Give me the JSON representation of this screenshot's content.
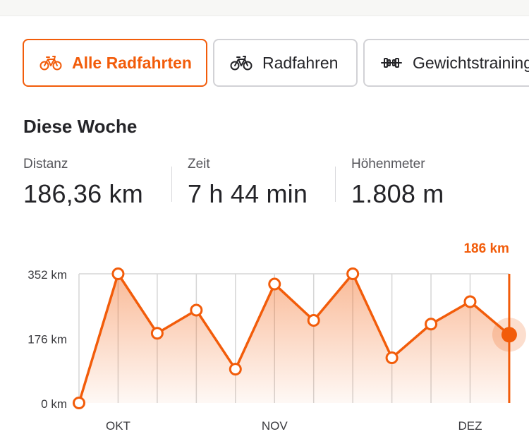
{
  "tabs": [
    {
      "label": "Alle Radfahrten",
      "icon": "bike-icon",
      "active": true
    },
    {
      "label": "Radfahren",
      "icon": "bike-icon",
      "active": false
    },
    {
      "label": "Gewichtstraining",
      "icon": "dumbbell-icon",
      "active": false
    }
  ],
  "section_title": "Diese Woche",
  "stats": [
    {
      "label": "Distanz",
      "value": "186,36 km"
    },
    {
      "label": "Zeit",
      "value": "7 h 44 min"
    },
    {
      "label": "Höhenmeter",
      "value": "1.808 m"
    }
  ],
  "colors": {
    "accent": "#f25c0a",
    "text": "#242428",
    "muted": "#55555a",
    "grid": "#d6d6d6"
  },
  "chart_data": {
    "type": "line",
    "x": [
      "2023-09-25",
      "2023-10-02",
      "2023-10-09",
      "2023-10-16",
      "2023-10-23",
      "2023-10-30",
      "2023-11-06",
      "2023-11-13",
      "2023-11-20",
      "2023-11-27",
      "2023-12-04",
      "2023-12-11"
    ],
    "values": [
      0,
      352,
      190,
      253,
      92,
      324,
      225,
      352,
      123,
      215,
      276,
      186
    ],
    "x_tick_labels": [
      {
        "label": "OKT",
        "index": 1
      },
      {
        "label": "NOV",
        "index": 5
      },
      {
        "label": "DEZ",
        "index": 10
      }
    ],
    "y_ticks": [
      {
        "value": 0,
        "label": "0 km"
      },
      {
        "value": 176,
        "label": "176 km"
      },
      {
        "value": 352,
        "label": "352 km"
      }
    ],
    "ylim": [
      0,
      352
    ],
    "grid": "vertical",
    "highlight_index": 11,
    "highlight_label": "186 km"
  }
}
